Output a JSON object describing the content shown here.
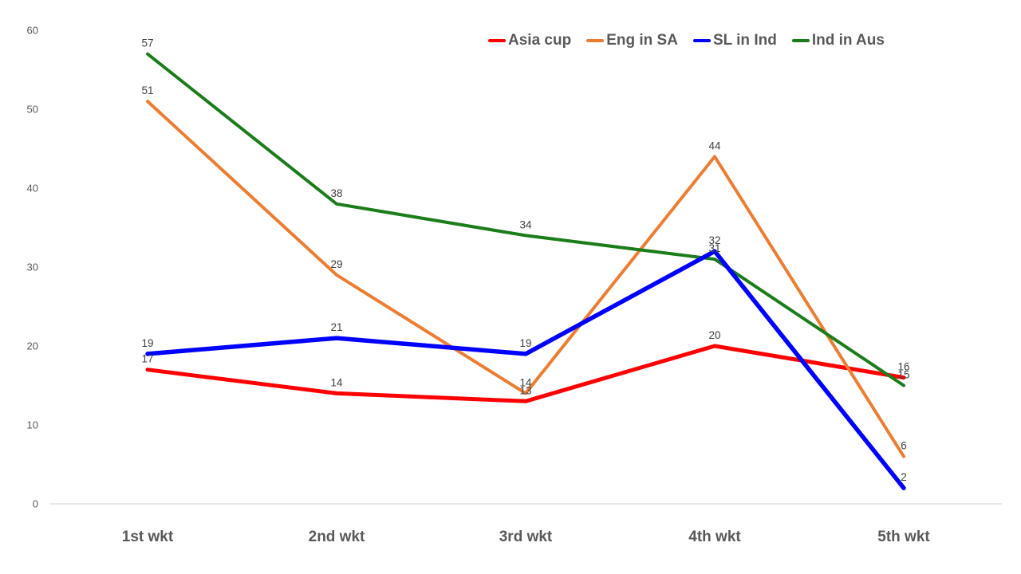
{
  "chart_data": {
    "type": "line",
    "title": "",
    "xlabel": "",
    "ylabel": "",
    "categories": [
      "1st wkt",
      "2nd wkt",
      "3rd wkt",
      "4th wkt",
      "5th wkt"
    ],
    "series": [
      {
        "name": "Asia cup",
        "color": "#FF0000",
        "line_width": 5,
        "values": [
          17,
          14,
          13,
          20,
          16
        ]
      },
      {
        "name": "Eng in SA",
        "color": "#ED7D31",
        "line_width": 4,
        "values": [
          51,
          29,
          14,
          44,
          6
        ]
      },
      {
        "name": "SL in Ind",
        "color": "#0000FF",
        "line_width": 5.5,
        "values": [
          19,
          21,
          19,
          32,
          2
        ]
      },
      {
        "name": "Ind in Aus",
        "color": "#1A7D1A",
        "line_width": 4,
        "values": [
          57,
          38,
          34,
          31,
          15
        ]
      }
    ],
    "draw_order": [
      0,
      1,
      3,
      2
    ],
    "y_ticks": [
      0,
      10,
      20,
      30,
      40,
      50,
      60
    ],
    "ylim": [
      0,
      60
    ],
    "grid": false,
    "legend_position": "top",
    "data_labels": true,
    "axis_line_color": "#D9D9D9",
    "tick_text_color": "#595959",
    "category_text_color": "#595959",
    "data_label_color": "#404040",
    "background_color": "#FFFFFF"
  }
}
